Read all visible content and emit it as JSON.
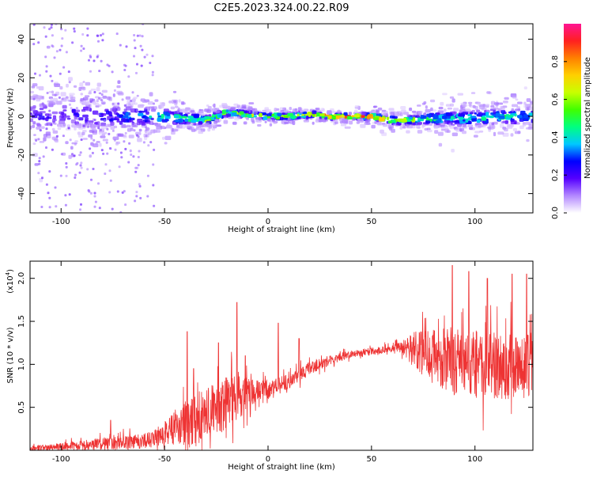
{
  "figure_title": "C2E5.2023.324.00.22.R09",
  "chart_data": [
    {
      "type": "heatmap",
      "xlabel": "Height of straight line (km)",
      "ylabel": "Frequency (Hz)",
      "xlim": [
        -115,
        128
      ],
      "ylim": [
        -50,
        48
      ],
      "x_ticks": [
        -100,
        -50,
        0,
        50,
        100
      ],
      "y_ticks": [
        -40,
        -20,
        0,
        20,
        40
      ],
      "grid": false,
      "colorbar": {
        "label": "Normalized spectral amplitude",
        "range": [
          0,
          1
        ],
        "ticks": [
          0.0,
          0.2,
          0.4,
          0.6,
          0.8
        ],
        "colors": [
          "#ffffff",
          "#b388ff",
          "#5500ff",
          "#0000ff",
          "#00c8ff",
          "#00ff80",
          "#40ff00",
          "#c8ff00",
          "#ffd000",
          "#ff8000",
          "#ff2020",
          "#ff1493"
        ]
      },
      "ridge": {
        "x": [
          -115,
          -100,
          -80,
          -60,
          -50,
          -40,
          -30,
          -20,
          -10,
          0,
          10,
          20,
          30,
          40,
          50,
          60,
          70,
          80,
          90,
          100,
          110,
          120,
          128
        ],
        "center_hz": [
          0,
          1,
          0,
          0,
          0,
          -1,
          -2,
          2,
          1,
          0,
          0,
          1,
          0,
          0,
          0,
          -2,
          -2,
          -1,
          -1,
          -1,
          0,
          0,
          0
        ],
        "spread_hz": [
          12,
          10,
          8,
          7,
          5,
          4,
          3,
          2.5,
          2,
          2,
          2,
          2,
          1.8,
          1.8,
          2,
          2.5,
          3,
          4,
          5,
          5,
          5,
          5,
          5
        ],
        "peak_amplitude": [
          0.25,
          0.25,
          0.3,
          0.4,
          0.5,
          0.55,
          0.7,
          0.65,
          0.75,
          0.75,
          0.8,
          0.85,
          0.95,
          0.95,
          0.9,
          0.85,
          0.7,
          0.55,
          0.5,
          0.5,
          0.5,
          0.5,
          0.5
        ]
      }
    },
    {
      "type": "line",
      "xlabel": "Height of straight line (km)",
      "ylabel": "SNR (10 * v/v)",
      "y_multiplier_label": "(x10",
      "y_multiplier_exp": "4",
      "xlim": [
        -115,
        128
      ],
      "ylim": [
        0,
        2.2
      ],
      "x_ticks": [
        -100,
        -50,
        0,
        50,
        100
      ],
      "y_ticks": [
        0.5,
        1.0,
        1.5,
        2.0
      ],
      "grid": false,
      "color": "#ee3333",
      "envelope": {
        "x": [
          -115,
          -100,
          -80,
          -60,
          -50,
          -40,
          -35,
          -30,
          -20,
          -15,
          -10,
          0,
          10,
          20,
          30,
          40,
          50,
          60,
          65,
          70,
          80,
          90,
          100,
          110,
          120,
          128
        ],
        "base": [
          0.02,
          0.04,
          0.08,
          0.1,
          0.2,
          0.3,
          0.35,
          0.45,
          0.55,
          0.6,
          0.65,
          0.7,
          0.8,
          0.95,
          1.05,
          1.12,
          1.15,
          1.18,
          1.2,
          1.15,
          1.1,
          1.05,
          1.0,
          1.0,
          1.0,
          1.0
        ],
        "noise": [
          0.03,
          0.05,
          0.08,
          0.1,
          0.15,
          0.3,
          0.35,
          0.3,
          0.35,
          0.3,
          0.2,
          0.12,
          0.1,
          0.08,
          0.06,
          0.05,
          0.05,
          0.05,
          0.08,
          0.25,
          0.35,
          0.45,
          0.45,
          0.45,
          0.45,
          0.45
        ]
      },
      "spikes": [
        {
          "x": -76,
          "y": 0.35
        },
        {
          "x": -39,
          "y": 1.38
        },
        {
          "x": -36,
          "y": 0.95
        },
        {
          "x": -24,
          "y": 1.25
        },
        {
          "x": -15,
          "y": 1.72
        },
        {
          "x": -11,
          "y": 1.1
        },
        {
          "x": 5,
          "y": 1.48
        },
        {
          "x": 15,
          "y": 1.3
        },
        {
          "x": 89,
          "y": 2.15
        },
        {
          "x": 97,
          "y": 2.08
        },
        {
          "x": 106,
          "y": 2.0
        },
        {
          "x": 118,
          "y": 2.05
        },
        {
          "x": 125,
          "y": 2.05
        }
      ]
    }
  ]
}
